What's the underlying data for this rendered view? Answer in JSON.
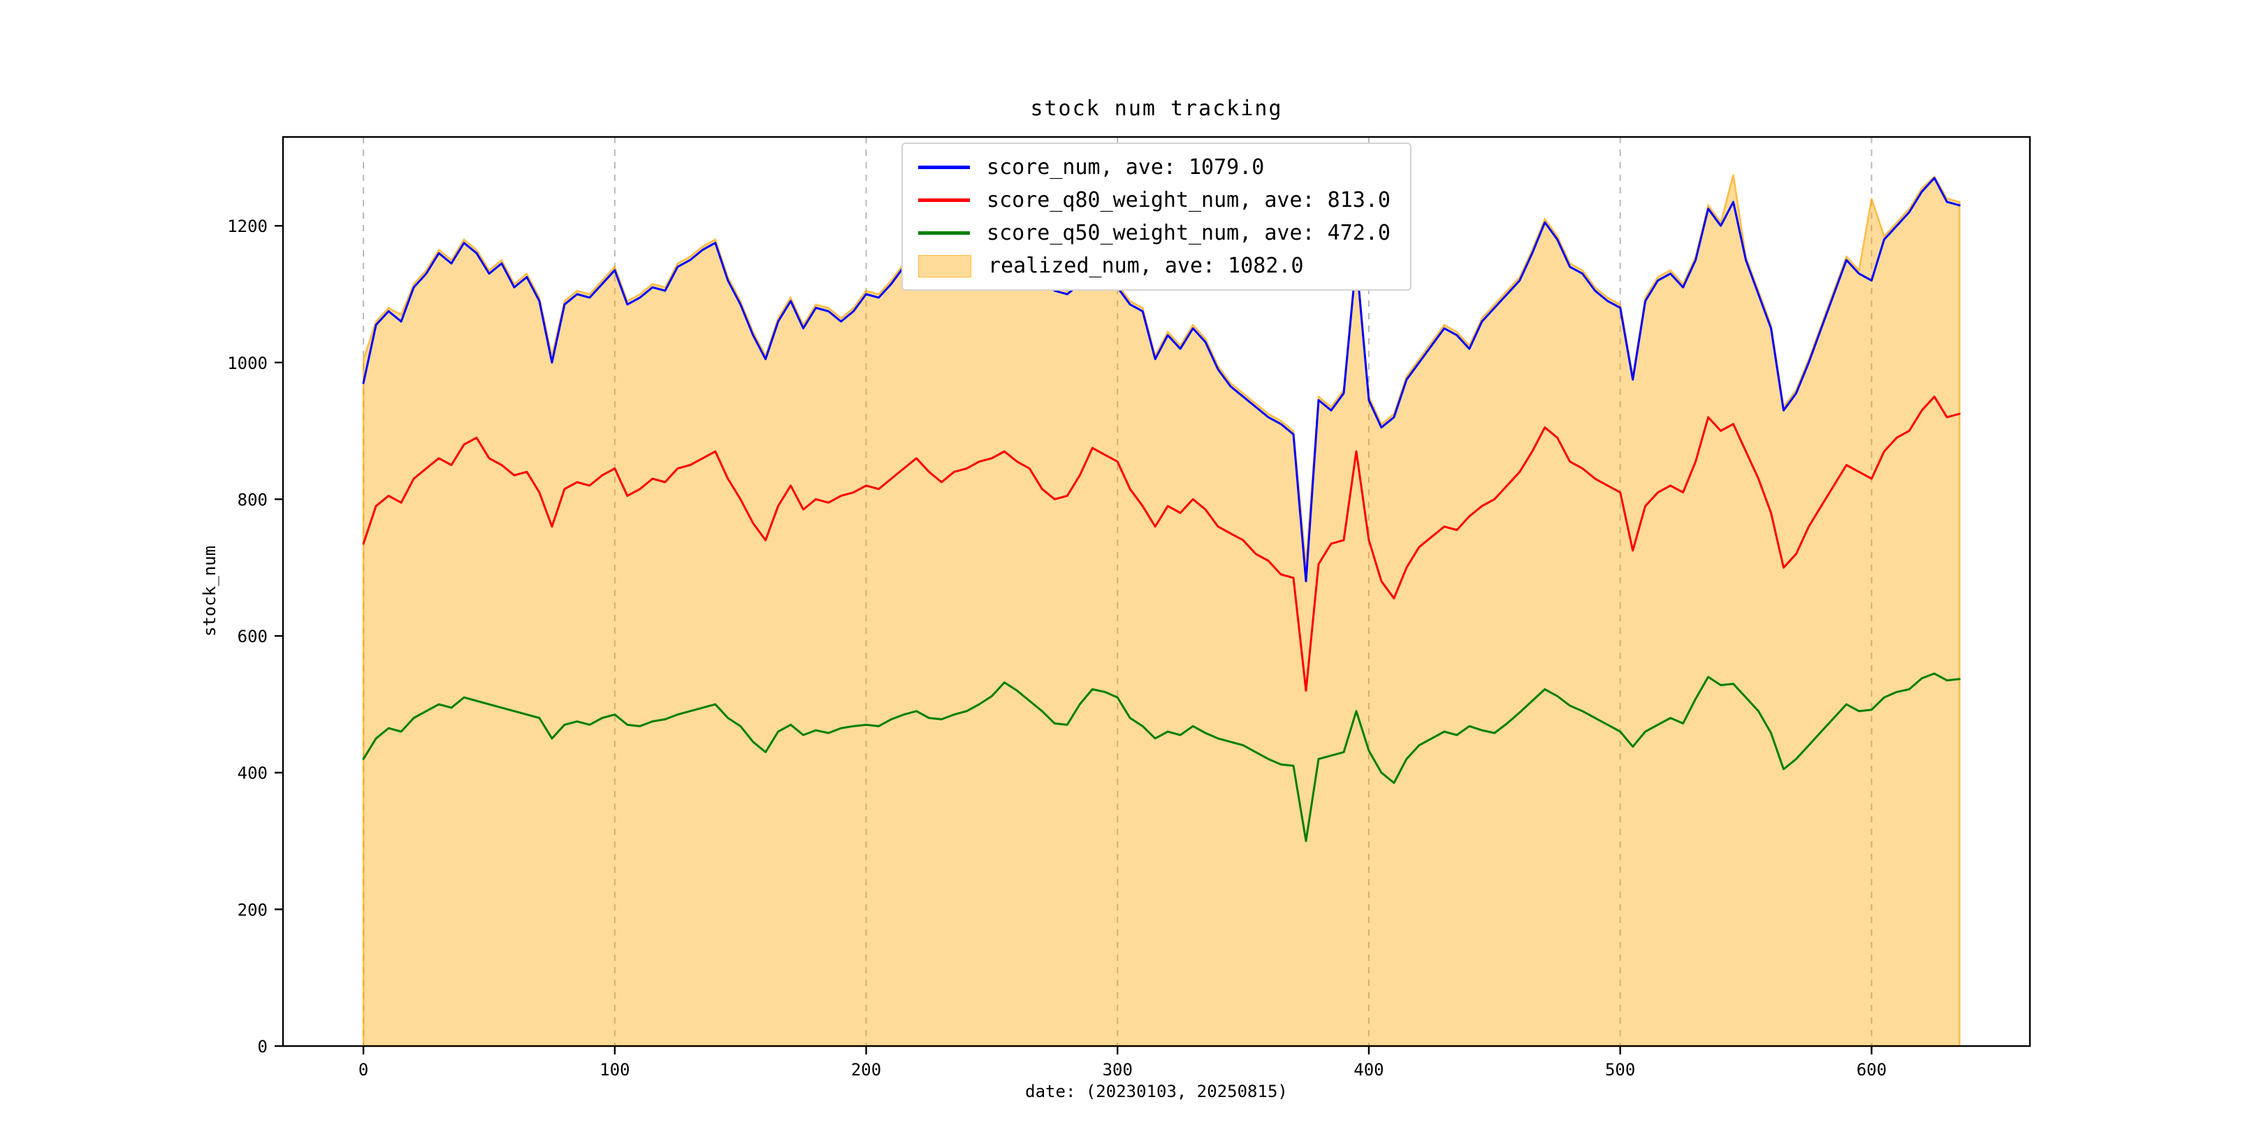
{
  "figure": {
    "background": "#ffffff"
  },
  "chart_data": {
    "type": "line",
    "title": "stock num tracking",
    "xlabel": "date: (20230103, 20250815)",
    "ylabel": "stock_num",
    "xlim": [
      -32,
      663
    ],
    "ylim": [
      0,
      1330
    ],
    "xticks": [
      0,
      100,
      200,
      300,
      400,
      500,
      600
    ],
    "yticks": [
      0,
      200,
      400,
      600,
      800,
      1000,
      1200
    ],
    "grid": {
      "axis": "x",
      "style": "dashed",
      "color": "#b8b8b8"
    },
    "legend": {
      "position": "upper center",
      "background": "#ffffff",
      "border_color": "#d4d4d4"
    },
    "x_start": 0,
    "x_step": 5,
    "series": [
      {
        "name": "score_num",
        "label": "score_num, ave: 1079.0",
        "ave": 1079.0,
        "style": "line",
        "color": "#0000ff",
        "values": [
          970,
          1055,
          1075,
          1060,
          1110,
          1130,
          1160,
          1145,
          1175,
          1160,
          1130,
          1145,
          1110,
          1125,
          1090,
          1000,
          1085,
          1100,
          1095,
          1115,
          1135,
          1085,
          1095,
          1110,
          1105,
          1140,
          1150,
          1165,
          1175,
          1120,
          1085,
          1040,
          1005,
          1060,
          1090,
          1050,
          1080,
          1075,
          1060,
          1075,
          1100,
          1095,
          1115,
          1140,
          1150,
          1125,
          1110,
          1130,
          1140,
          1165,
          1180,
          1190,
          1180,
          1155,
          1130,
          1105,
          1100,
          1115,
          1125,
          1130,
          1110,
          1085,
          1075,
          1005,
          1040,
          1020,
          1050,
          1030,
          990,
          965,
          950,
          935,
          920,
          910,
          895,
          680,
          945,
          930,
          955,
          1150,
          945,
          905,
          920,
          975,
          1000,
          1025,
          1050,
          1040,
          1020,
          1060,
          1080,
          1100,
          1120,
          1160,
          1205,
          1180,
          1140,
          1130,
          1105,
          1090,
          1080,
          975,
          1090,
          1120,
          1130,
          1110,
          1150,
          1225,
          1200,
          1235,
          1150,
          1100,
          1050,
          930,
          955,
          1000,
          1050,
          1100,
          1150,
          1130,
          1120,
          1180,
          1200,
          1220,
          1250,
          1270,
          1235,
          1230
        ]
      },
      {
        "name": "score_q80_weight_num",
        "label": "score_q80_weight_num, ave: 813.0",
        "ave": 813.0,
        "style": "line",
        "color": "#ff0000",
        "values": [
          735,
          790,
          805,
          795,
          830,
          845,
          860,
          850,
          880,
          890,
          860,
          850,
          835,
          840,
          810,
          760,
          815,
          825,
          820,
          835,
          845,
          805,
          815,
          830,
          825,
          845,
          850,
          860,
          870,
          830,
          800,
          765,
          740,
          790,
          820,
          785,
          800,
          795,
          805,
          810,
          820,
          815,
          830,
          845,
          860,
          840,
          825,
          840,
          845,
          855,
          860,
          870,
          855,
          845,
          815,
          800,
          805,
          835,
          875,
          865,
          855,
          815,
          790,
          760,
          790,
          780,
          800,
          785,
          760,
          750,
          740,
          720,
          710,
          690,
          685,
          520,
          705,
          735,
          740,
          870,
          740,
          680,
          655,
          700,
          730,
          745,
          760,
          755,
          775,
          790,
          800,
          820,
          840,
          870,
          905,
          890,
          855,
          845,
          830,
          820,
          810,
          725,
          790,
          810,
          820,
          810,
          855,
          920,
          900,
          910,
          870,
          830,
          780,
          700,
          720,
          760,
          790,
          820,
          850,
          840,
          830,
          870,
          890,
          900,
          930,
          950,
          920,
          925
        ]
      },
      {
        "name": "score_q50_weight_num",
        "label": "score_q50_weight_num, ave: 472.0",
        "ave": 472.0,
        "style": "line",
        "color": "#008000",
        "values": [
          420,
          450,
          465,
          460,
          480,
          490,
          500,
          495,
          510,
          505,
          500,
          495,
          490,
          485,
          480,
          450,
          470,
          475,
          470,
          480,
          485,
          470,
          468,
          475,
          478,
          485,
          490,
          495,
          500,
          480,
          468,
          445,
          430,
          460,
          470,
          455,
          462,
          458,
          465,
          468,
          470,
          468,
          478,
          485,
          490,
          480,
          478,
          485,
          490,
          500,
          512,
          532,
          520,
          505,
          490,
          472,
          470,
          500,
          522,
          518,
          510,
          480,
          468,
          450,
          460,
          455,
          468,
          458,
          450,
          445,
          440,
          430,
          420,
          412,
          410,
          300,
          420,
          425,
          430,
          490,
          432,
          400,
          385,
          420,
          440,
          450,
          460,
          455,
          468,
          462,
          458,
          472,
          488,
          505,
          522,
          512,
          498,
          490,
          480,
          470,
          460,
          438,
          460,
          470,
          480,
          472,
          508,
          540,
          528,
          530,
          510,
          490,
          458,
          405,
          420,
          440,
          460,
          480,
          500,
          490,
          492,
          510,
          518,
          522,
          538,
          545,
          535,
          537
        ]
      },
      {
        "name": "realized_num",
        "label": "realized_num, ave: 1082.0",
        "ave": 1082.0,
        "style": "area",
        "color": "#ffa500",
        "fill_opacity": 0.4,
        "values": [
          1005,
          1060,
          1080,
          1070,
          1115,
          1135,
          1165,
          1150,
          1180,
          1165,
          1135,
          1150,
          1115,
          1130,
          1095,
          1010,
          1090,
          1105,
          1100,
          1120,
          1140,
          1090,
          1100,
          1115,
          1110,
          1145,
          1155,
          1170,
          1180,
          1125,
          1090,
          1045,
          1010,
          1065,
          1095,
          1055,
          1085,
          1080,
          1065,
          1080,
          1105,
          1100,
          1120,
          1145,
          1190,
          1130,
          1115,
          1135,
          1145,
          1170,
          1185,
          1195,
          1185,
          1160,
          1135,
          1110,
          1105,
          1120,
          1130,
          1135,
          1115,
          1090,
          1080,
          1010,
          1045,
          1025,
          1055,
          1035,
          995,
          970,
          955,
          940,
          925,
          915,
          900,
          705,
          950,
          935,
          960,
          1155,
          950,
          910,
          925,
          980,
          1005,
          1030,
          1055,
          1045,
          1025,
          1065,
          1085,
          1105,
          1125,
          1165,
          1210,
          1185,
          1145,
          1135,
          1110,
          1095,
          1085,
          980,
          1095,
          1125,
          1135,
          1115,
          1155,
          1230,
          1205,
          1275,
          1155,
          1105,
          1055,
          935,
          960,
          1005,
          1055,
          1105,
          1155,
          1135,
          1240,
          1185,
          1205,
          1225,
          1255,
          1272,
          1240,
          1235
        ]
      }
    ]
  }
}
